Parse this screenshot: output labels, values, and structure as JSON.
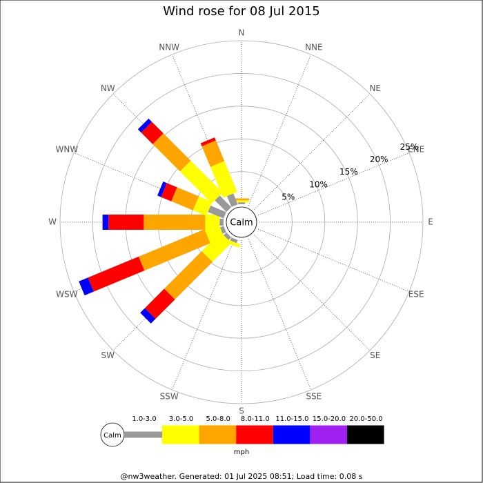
{
  "chart_data": {
    "type": "windrose",
    "title": "Wind rose for 08 Jul 2015",
    "directions": [
      "N",
      "NNE",
      "NE",
      "ENE",
      "E",
      "ESE",
      "SE",
      "SSE",
      "S",
      "SSW",
      "SW",
      "WSW",
      "W",
      "WNW",
      "NW",
      "NNW"
    ],
    "center_label": "Calm",
    "unit_label": "mph",
    "rlim": [
      0,
      25
    ],
    "rticks": [
      {
        "value": 5,
        "label": "5%"
      },
      {
        "value": 10,
        "label": "10%"
      },
      {
        "value": 15,
        "label": "15%"
      },
      {
        "value": 20,
        "label": "20%"
      },
      {
        "value": 25,
        "label": "25%"
      }
    ],
    "series": [
      {
        "name": "1.0-3.0",
        "color": "#999999",
        "values": [
          0.3,
          0,
          0,
          0,
          0,
          0,
          0,
          0,
          0,
          0.5,
          0.6,
          0.6,
          0.6,
          2.6,
          2.5,
          1.8
        ]
      },
      {
        "name": "3.0-5.0",
        "color": "#ffff00",
        "values": [
          0.3,
          0,
          0,
          0,
          0,
          0,
          0,
          0,
          0,
          0.5,
          4.1,
          2.3,
          2.2,
          2.2,
          6.9,
          5.1
        ]
      },
      {
        "name": "5.0-8.0",
        "color": "#ffa500",
        "values": [
          0.3,
          0,
          0,
          0,
          0,
          0,
          0,
          0,
          0,
          0,
          8.1,
          10.9,
          9.4,
          3.6,
          5.9,
          3.4
        ]
      },
      {
        "name": "8.0-11.0",
        "color": "#ff0000",
        "values": [
          0,
          0,
          0,
          0,
          0,
          0,
          0,
          0,
          0,
          0,
          4.2,
          8.4,
          5.4,
          1.7,
          2.5,
          0.5
        ]
      },
      {
        "name": "11.0-15.0",
        "color": "#0000ff",
        "values": [
          0,
          0,
          0,
          0,
          0,
          0,
          0,
          0,
          0,
          0,
          1.0,
          1.5,
          0.9,
          0.6,
          0.7,
          0
        ]
      },
      {
        "name": "15.0-20.0",
        "color": "#a020f0",
        "values": [
          0,
          0,
          0,
          0,
          0,
          0,
          0,
          0,
          0,
          0,
          0,
          0,
          0,
          0,
          0,
          0
        ]
      },
      {
        "name": "20.0-50.0",
        "color": "#000000",
        "values": [
          0,
          0,
          0,
          0,
          0,
          0,
          0,
          0,
          0,
          0,
          0,
          0,
          0,
          0,
          0,
          0
        ]
      }
    ],
    "footer": "@nw3weather. Generated: 01 Jul 2025 08:51; Load time: 0.08 s"
  }
}
